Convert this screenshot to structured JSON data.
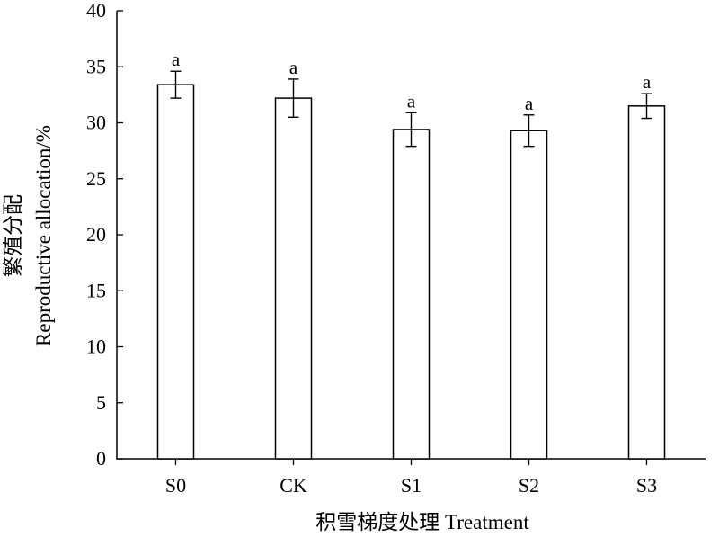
{
  "chart_data": {
    "type": "bar",
    "categories": [
      "S0",
      "CK",
      "S1",
      "S2",
      "S3"
    ],
    "values": [
      33.4,
      32.2,
      29.4,
      29.3,
      31.5
    ],
    "errors": [
      1.2,
      1.7,
      1.5,
      1.4,
      1.1
    ],
    "significance": [
      "a",
      "a",
      "a",
      "a",
      "a"
    ],
    "xlabel": "积雪梯度处理 Treatment",
    "ylabel_cn": "繁殖分配",
    "ylabel_en": "Reproductive allocation/%",
    "ylim": [
      0,
      40
    ],
    "yticks": [
      0,
      5,
      10,
      15,
      20,
      25,
      30,
      35,
      40
    ],
    "grid": false,
    "bar_fill": "#ffffff",
    "bar_stroke": "#000000"
  }
}
